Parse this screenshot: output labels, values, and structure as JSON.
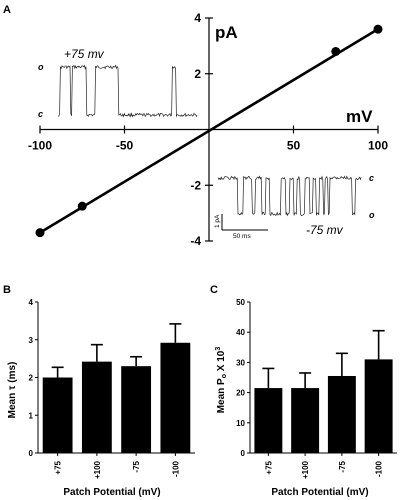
{
  "panels": {
    "A": {
      "letter": "A",
      "chart_data": {
        "type": "scatter",
        "x_unit_label": "mV",
        "y_unit_label": "pA",
        "xlim": [
          -100,
          100
        ],
        "ylim": [
          -4,
          4
        ],
        "x_ticks": [
          "-100",
          "-50",
          "50",
          "100"
        ],
        "y_ticks": [
          "4",
          "2",
          "-2",
          "-4"
        ],
        "points": [
          {
            "x": -100,
            "y": -3.7
          },
          {
            "x": -75,
            "y": -2.75
          },
          {
            "x": 75,
            "y": 2.8
          },
          {
            "x": 100,
            "y": 3.6
          }
        ],
        "fit_line": {
          "x": [
            -100,
            100
          ],
          "y": [
            -3.7,
            3.6
          ]
        }
      },
      "inset_top": {
        "title": "+75 mv",
        "open_label": "o",
        "closed_label": "c"
      },
      "inset_bottom": {
        "title": "-75 mv",
        "open_label": "o",
        "closed_label": "c",
        "scale_y": "1 pA",
        "scale_x": "50 ms"
      }
    },
    "B": {
      "letter": "B",
      "chart_data": {
        "type": "bar",
        "categories": [
          "+75",
          "+100",
          "-75",
          "-100"
        ],
        "values": [
          2.0,
          2.42,
          2.3,
          2.92
        ],
        "errors": [
          0.27,
          0.45,
          0.25,
          0.5
        ],
        "ylim": [
          0,
          4
        ],
        "y_ticks": [
          "0",
          "1",
          "2",
          "3",
          "4"
        ],
        "ylabel": "Mean τ (ms)",
        "xlabel": "Patch Potential (mV)"
      }
    },
    "C": {
      "letter": "C",
      "chart_data": {
        "type": "bar",
        "categories": [
          "+75",
          "+100",
          "-75",
          "-100"
        ],
        "values": [
          21.5,
          21.5,
          25.5,
          31.0
        ],
        "errors": [
          6.5,
          5.0,
          7.5,
          9.5
        ],
        "ylim": [
          0,
          50
        ],
        "y_ticks": [
          "0",
          "10",
          "20",
          "30",
          "40",
          "50"
        ],
        "ylabel": "Mean P o X 10³",
        "xlabel": "Patch Potential (mV)"
      }
    }
  }
}
